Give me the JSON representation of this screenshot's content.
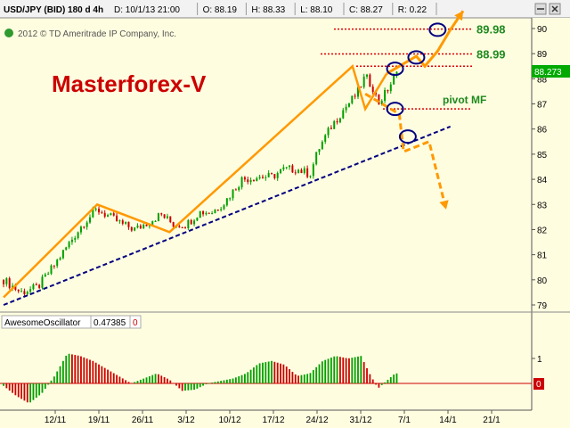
{
  "header": {
    "symbol": "USD/JPY (BID) 180 d 4h",
    "fields": [
      {
        "label": "D:",
        "value": "10/1/13 21:00"
      },
      {
        "label": "O:",
        "value": "88.19"
      },
      {
        "label": "H:",
        "value": "88.33"
      },
      {
        "label": "L:",
        "value": "88.10"
      },
      {
        "label": "C:",
        "value": "88.27"
      },
      {
        "label": "R:",
        "value": "0.22"
      }
    ]
  },
  "copyright": "2012 © TD Ameritrade IP Company, Inc.",
  "brand_label": "Masterforex-V",
  "colors": {
    "background": "#fffde0",
    "up": "#00a000",
    "down": "#cc0000",
    "annotation": "#ff9900",
    "trendline": "#000080",
    "level": "#dd0000",
    "text_green": "#1f8a1f",
    "brand": "#cc0000",
    "last_price_bg": "#00aa00"
  },
  "indicator": {
    "name": "AwesomeOscillator",
    "value": "0.47385",
    "marker": "0",
    "right_marker": "0"
  },
  "last_price_label": "88.273",
  "chart_data": [
    {
      "type": "candlestick",
      "title": "USD/JPY (BID) 180 d 4h",
      "xlabel": "",
      "ylabel": "",
      "x_ticks": [
        "12/11",
        "19/11",
        "26/11",
        "3/12",
        "10/12",
        "17/12",
        "24/12",
        "31/12",
        "7/1",
        "14/1",
        "21/1"
      ],
      "y_ticks": [
        79,
        80,
        81,
        82,
        83,
        84,
        85,
        86,
        87,
        88,
        89,
        90
      ],
      "ylim": [
        78.8,
        90.6
      ],
      "grid": false,
      "price_path": [
        [
          0,
          80.0
        ],
        [
          4,
          79.5
        ],
        [
          8,
          79.7
        ],
        [
          12,
          80.6
        ],
        [
          16,
          81.6
        ],
        [
          19,
          82.3
        ],
        [
          22,
          82.8
        ],
        [
          25,
          82.5
        ],
        [
          28,
          82.2
        ],
        [
          31,
          82.0
        ],
        [
          34,
          82.3
        ],
        [
          37,
          82.6
        ],
        [
          40,
          82.2
        ],
        [
          43,
          82.2
        ],
        [
          46,
          82.7
        ],
        [
          49,
          82.7
        ],
        [
          52,
          83.1
        ],
        [
          56,
          84.0
        ],
        [
          60,
          84.1
        ],
        [
          63,
          84.1
        ],
        [
          66,
          84.4
        ],
        [
          69,
          84.4
        ],
        [
          72,
          84.2
        ],
        [
          74,
          85.2
        ],
        [
          77,
          86.1
        ],
        [
          80,
          86.8
        ],
        [
          83,
          87.4
        ],
        [
          85,
          88.1
        ],
        [
          87,
          87.6
        ],
        [
          88,
          87.0
        ],
        [
          90,
          87.5
        ],
        [
          92,
          88.1
        ],
        [
          93,
          88.3
        ]
      ],
      "overlay_points": [
        {
          "name": "swing",
          "points": [
            [
              0,
              79.3
            ],
            [
              22,
              83.0
            ],
            [
              39,
              81.9
            ],
            [
              82,
              88.5
            ],
            [
              85,
              86.8
            ],
            [
              90,
              88.2
            ]
          ]
        },
        {
          "name": "trend",
          "points": [
            [
              0,
              79.0
            ],
            [
              105,
              86.1
            ]
          ]
        },
        {
          "name": "projection-up",
          "points": [
            [
              90,
              88.2
            ],
            [
              93,
              88.5
            ],
            [
              97,
              88.9
            ],
            [
              99,
              88.5
            ],
            [
              102,
              89.1
            ],
            [
              105,
              89.95
            ],
            [
              108,
              90.7
            ]
          ]
        },
        {
          "name": "projection-down",
          "points": [
            [
              85,
              87.4
            ],
            [
              93,
              86.6
            ],
            [
              94,
              85.1
            ],
            [
              100,
              85.5
            ],
            [
              104,
              82.8
            ]
          ]
        }
      ],
      "levels": [
        {
          "label": "89.98",
          "value": 89.98
        },
        {
          "label": "88.99",
          "value": 88.99
        },
        {
          "label": "",
          "value": 88.5
        },
        {
          "label": "pivot MF",
          "value": 86.8
        }
      ],
      "circles": [
        [
          92,
          88.4
        ],
        [
          97,
          88.85
        ],
        [
          102,
          89.95
        ],
        [
          92,
          86.8
        ],
        [
          95,
          85.7
        ]
      ]
    },
    {
      "type": "bar",
      "title": "AwesomeOscillator",
      "xlabel": "",
      "ylabel": "",
      "y_ticks": [
        1
      ],
      "ylim": [
        -0.8,
        1.4
      ],
      "ao_path": [
        [
          0,
          -0.1
        ],
        [
          3,
          -0.5
        ],
        [
          6,
          -0.8
        ],
        [
          9,
          -0.4
        ],
        [
          12,
          0.3
        ],
        [
          15,
          1.2
        ],
        [
          18,
          1.1
        ],
        [
          21,
          0.9
        ],
        [
          24,
          0.6
        ],
        [
          27,
          0.3
        ],
        [
          30,
          0.0
        ],
        [
          33,
          0.2
        ],
        [
          36,
          0.4
        ],
        [
          39,
          0.15
        ],
        [
          42,
          -0.3
        ],
        [
          45,
          -0.25
        ],
        [
          48,
          0.0
        ],
        [
          51,
          0.1
        ],
        [
          54,
          0.2
        ],
        [
          57,
          0.4
        ],
        [
          60,
          0.8
        ],
        [
          63,
          0.9
        ],
        [
          66,
          0.75
        ],
        [
          69,
          0.3
        ],
        [
          72,
          0.4
        ],
        [
          75,
          0.9
        ],
        [
          78,
          1.1
        ],
        [
          81,
          1.0
        ],
        [
          84,
          1.1
        ],
        [
          86,
          0.4
        ],
        [
          88,
          -0.2
        ],
        [
          90,
          0.1
        ],
        [
          92,
          0.4
        ]
      ]
    }
  ]
}
